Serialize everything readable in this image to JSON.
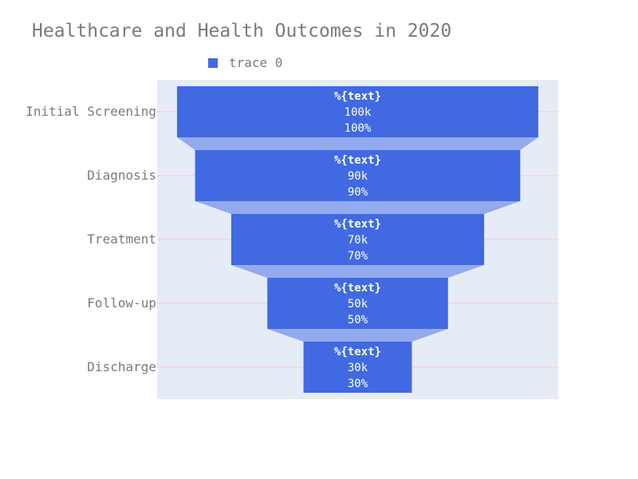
{
  "title": "Healthcare and Health Outcomes in 2020",
  "legend": {
    "label": "trace 0"
  },
  "colors": {
    "bar": "#4169e1",
    "connector": "#94aaee",
    "plot_bg": "#e5ecf6",
    "gridline": "#f5c8d2",
    "text": "#7a7a7a",
    "bar_text": "#ffffff"
  },
  "chart_data": {
    "type": "funnel",
    "title": "Healthcare and Health Outcomes in 2020",
    "categories": [
      "Initial Screening",
      "Diagnosis",
      "Treatment",
      "Follow-up",
      "Discharge"
    ],
    "series": [
      {
        "name": "trace 0",
        "values": [
          100000,
          90000,
          70000,
          50000,
          30000
        ],
        "text_template": "%{text}",
        "value_labels": [
          "100k",
          "90k",
          "70k",
          "50k",
          "30k"
        ],
        "percent_labels": [
          "100%",
          "90%",
          "70%",
          "50%",
          "30%"
        ]
      }
    ],
    "legend_position": "top"
  }
}
